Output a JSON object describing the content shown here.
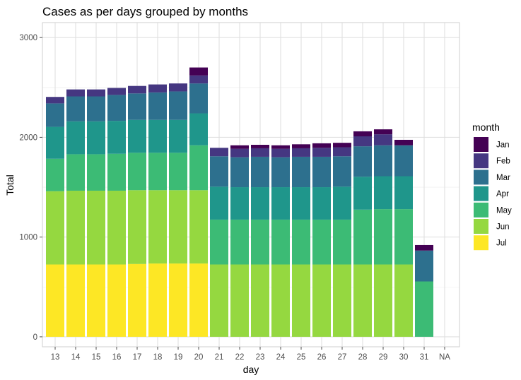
{
  "chart_data": {
    "type": "bar",
    "stacked": true,
    "title": "Cases as per days grouped by months",
    "xlabel": "day",
    "ylabel": "Total",
    "ylim": [
      -100,
      3150
    ],
    "y_ticks": [
      0,
      1000,
      2000,
      3000
    ],
    "y_tick_labels": [
      "0",
      "1000",
      "2000",
      "3000"
    ],
    "grid": true,
    "legend_position": "right",
    "legend_title": "month",
    "categories": [
      "13",
      "14",
      "15",
      "16",
      "17",
      "18",
      "19",
      "20",
      "21",
      "22",
      "23",
      "24",
      "25",
      "26",
      "27",
      "28",
      "29",
      "30",
      "31",
      "NA"
    ],
    "series": [
      {
        "name": "Jul",
        "color": "#FDE725",
        "values": [
          725,
          725,
          725,
          725,
          730,
          735,
          735,
          735,
          0,
          0,
          0,
          0,
          0,
          0,
          0,
          0,
          0,
          0,
          0,
          0
        ]
      },
      {
        "name": "Jun",
        "color": "#95D840",
        "values": [
          735,
          740,
          740,
          740,
          740,
          735,
          735,
          735,
          725,
          725,
          725,
          725,
          725,
          725,
          725,
          725,
          725,
          725,
          0,
          0
        ]
      },
      {
        "name": "May",
        "color": "#3CBB75",
        "values": [
          325,
          365,
          365,
          370,
          375,
          375,
          375,
          450,
          450,
          450,
          450,
          450,
          450,
          450,
          450,
          550,
          555,
          555,
          555,
          0
        ]
      },
      {
        "name": "Apr",
        "color": "#1F968B",
        "values": [
          320,
          330,
          330,
          330,
          330,
          330,
          330,
          320,
          330,
          325,
          325,
          325,
          325,
          325,
          330,
          330,
          330,
          330,
          0,
          0
        ]
      },
      {
        "name": "Mar",
        "color": "#2D708E",
        "values": [
          235,
          250,
          250,
          260,
          265,
          275,
          285,
          300,
          305,
          300,
          305,
          300,
          305,
          305,
          305,
          305,
          310,
          310,
          310,
          0
        ]
      },
      {
        "name": "Feb",
        "color": "#453781",
        "values": [
          65,
          70,
          70,
          70,
          75,
          80,
          80,
          80,
          85,
          85,
          85,
          85,
          85,
          90,
          90,
          100,
          110,
          0,
          0,
          0
        ]
      },
      {
        "name": "Jan",
        "color": "#440154",
        "values": [
          0,
          0,
          0,
          0,
          0,
          0,
          0,
          80,
          0,
          35,
          35,
          35,
          40,
          45,
          45,
          50,
          50,
          55,
          55,
          0
        ]
      }
    ],
    "legend_order": [
      "Jan",
      "Feb",
      "Mar",
      "Apr",
      "May",
      "Jun",
      "Jul"
    ]
  }
}
